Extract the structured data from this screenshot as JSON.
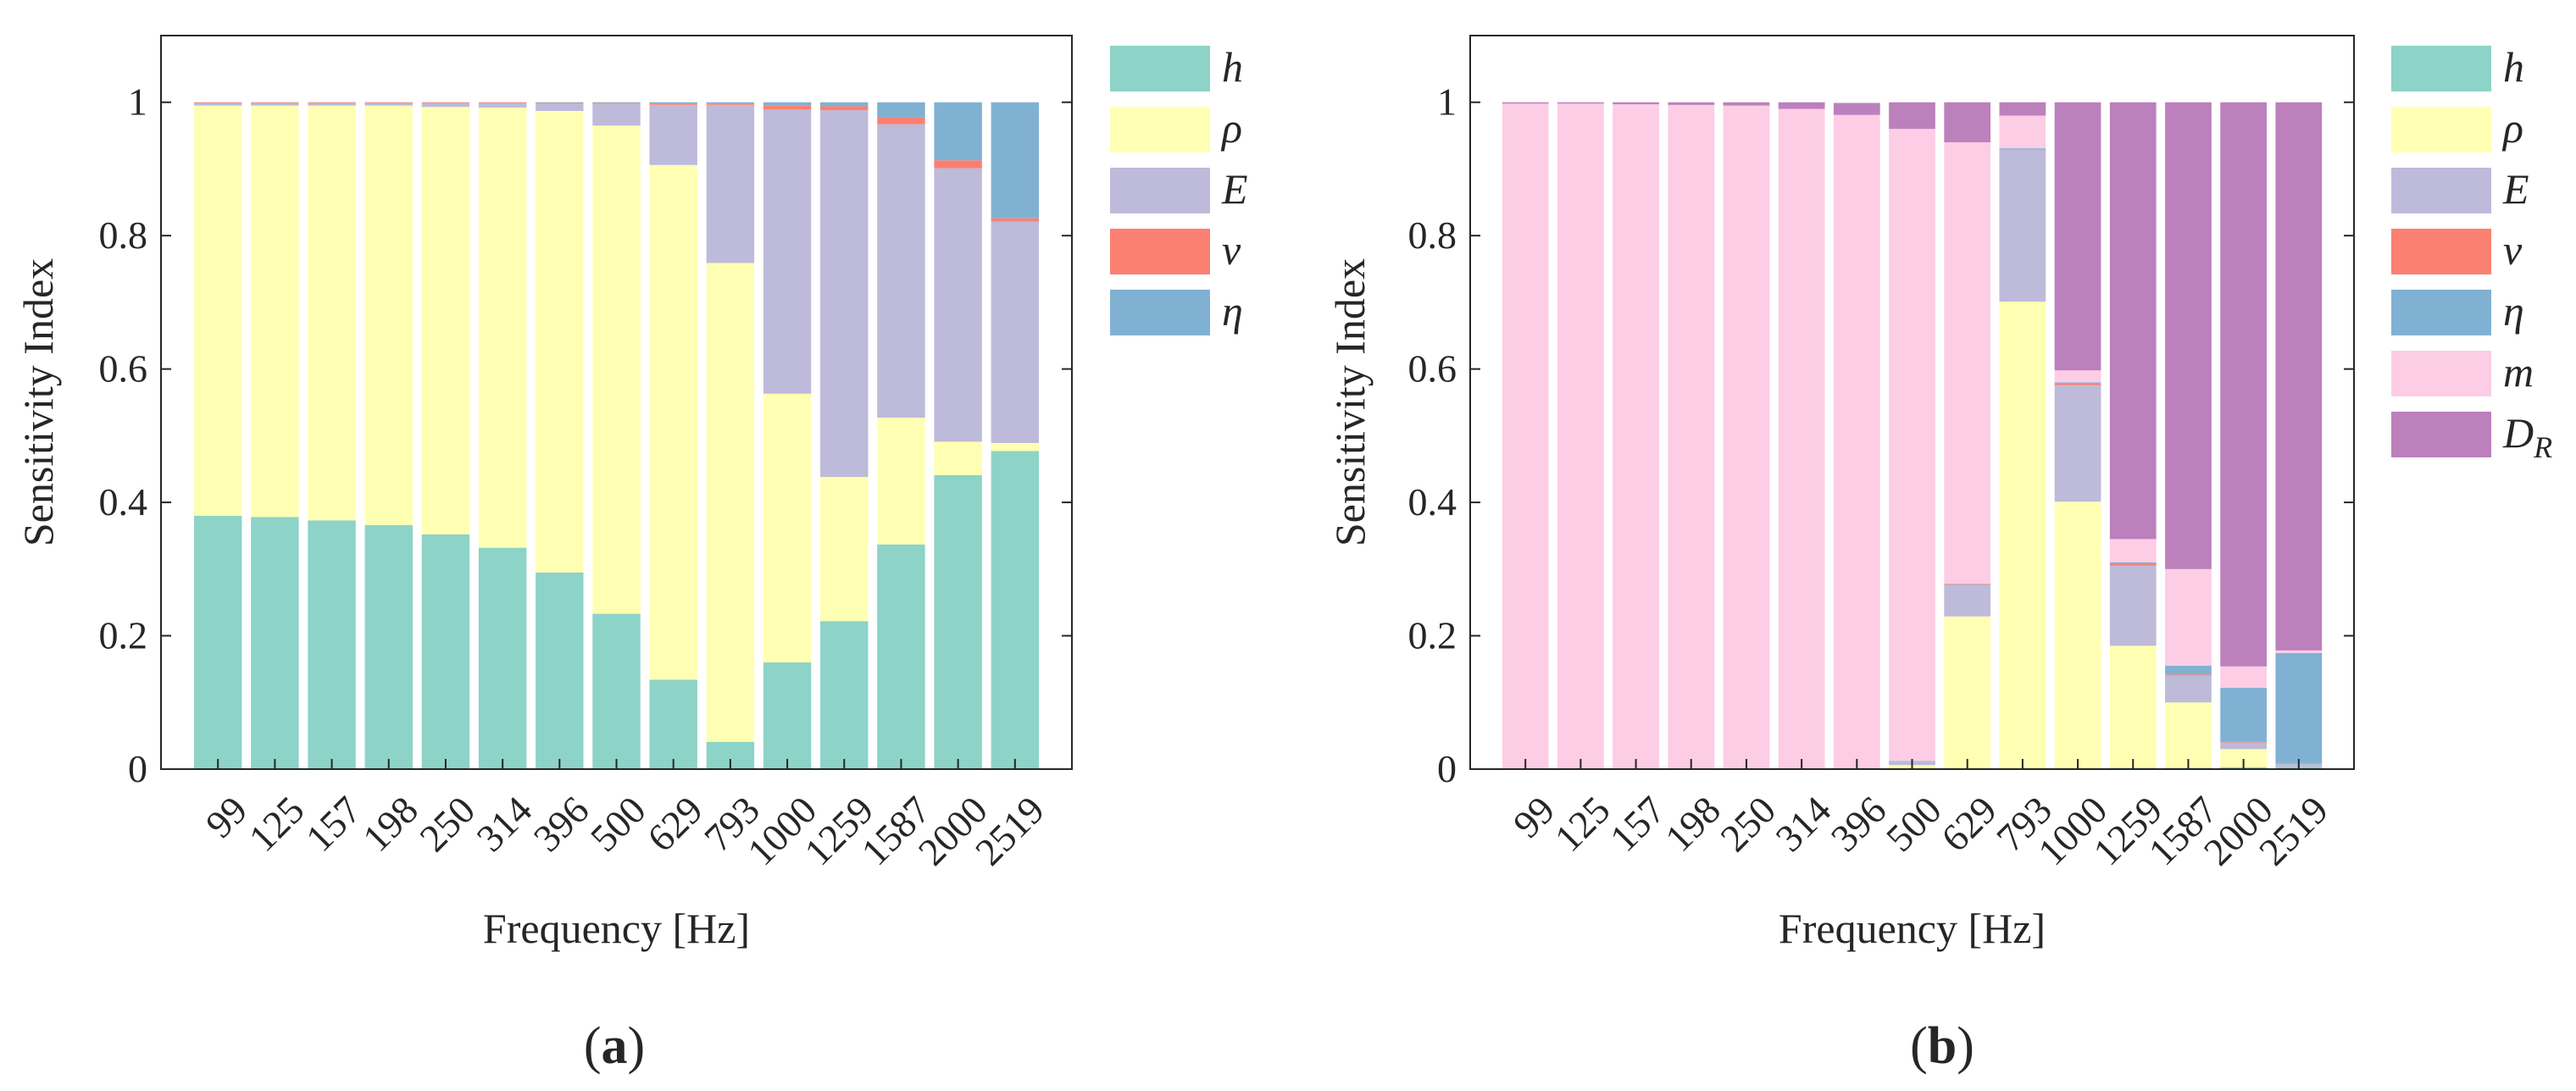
{
  "figure": {
    "panel_labels": [
      {
        "open": "(",
        "letter": "a",
        "close": ")"
      },
      {
        "open": "(",
        "letter": "b",
        "close": ")"
      }
    ]
  },
  "chart_data": [
    {
      "type": "bar",
      "stacked": true,
      "panel": "a",
      "xlabel": "Frequency [Hz]",
      "ylabel": "Sensitivity Index",
      "ylim": [
        0,
        1.1
      ],
      "yticks": [
        0,
        0.2,
        0.4,
        0.6,
        0.8,
        1
      ],
      "ytick_labels": [
        "0",
        "0.2",
        "0.4",
        "0.6",
        "0.8",
        "1"
      ],
      "categories": [
        "99",
        "125",
        "157",
        "198",
        "250",
        "314",
        "396",
        "500",
        "629",
        "793",
        "1000",
        "1259",
        "1587",
        "2000",
        "2519"
      ],
      "legend_position": "outside-top-right",
      "series": [
        {
          "name": "h",
          "color": "#8dd3c7",
          "values": [
            0.38,
            0.378,
            0.373,
            0.366,
            0.352,
            0.332,
            0.295,
            0.233,
            0.134,
            0.041,
            0.16,
            0.222,
            0.337,
            0.441,
            0.477
          ]
        },
        {
          "name": "ρ",
          "color": "#ffffb3",
          "values": [
            0.615,
            0.617,
            0.622,
            0.629,
            0.641,
            0.66,
            0.692,
            0.732,
            0.772,
            0.718,
            0.403,
            0.216,
            0.19,
            0.05,
            0.012
          ]
        },
        {
          "name": "E",
          "color": "#bebada",
          "values": [
            0.004,
            0.004,
            0.004,
            0.004,
            0.006,
            0.007,
            0.011,
            0.033,
            0.09,
            0.237,
            0.426,
            0.55,
            0.44,
            0.41,
            0.332
          ]
        },
        {
          "name": "ν",
          "color": "#fb8072",
          "values": [
            0.001,
            0.001,
            0.001,
            0.001,
            0.001,
            0.001,
            0.001,
            0.001,
            0.002,
            0.002,
            0.006,
            0.006,
            0.01,
            0.012,
            0.005
          ]
        },
        {
          "name": "η",
          "color": "#80b1d3",
          "values": [
            0.0,
            0.0,
            0.0,
            0.0,
            0.0,
            0.0,
            0.001,
            0.001,
            0.002,
            0.002,
            0.005,
            0.006,
            0.023,
            0.087,
            0.174
          ]
        }
      ]
    },
    {
      "type": "bar",
      "stacked": true,
      "panel": "b",
      "xlabel": "Frequency [Hz]",
      "ylabel": "Sensitivity Index",
      "ylim": [
        0,
        1.1
      ],
      "yticks": [
        0,
        0.2,
        0.4,
        0.6,
        0.8,
        1
      ],
      "ytick_labels": [
        "0",
        "0.2",
        "0.4",
        "0.6",
        "0.8",
        "1"
      ],
      "categories": [
        "99",
        "125",
        "157",
        "198",
        "250",
        "314",
        "396",
        "500",
        "629",
        "793",
        "1000",
        "1259",
        "1587",
        "2000",
        "2519"
      ],
      "legend_position": "outside-top-right",
      "series": [
        {
          "name": "h",
          "color": "#8dd3c7",
          "values": [
            0,
            0,
            0,
            0,
            0,
            0,
            0,
            0.001,
            0.001,
            0.001,
            0.001,
            0.002,
            0.002,
            0.003,
            0.004
          ]
        },
        {
          "name": "ρ",
          "color": "#ffffb3",
          "values": [
            0.0,
            0.0,
            0.0,
            0.0,
            0.0,
            0.0,
            0.001,
            0.005,
            0.228,
            0.7,
            0.4,
            0.183,
            0.098,
            0.027,
            0.0
          ]
        },
        {
          "name": "E",
          "color": "#bebada",
          "values": [
            0.0,
            0.0,
            0.0,
            0.0,
            0.0,
            0.0,
            0.001,
            0.005,
            0.047,
            0.228,
            0.175,
            0.12,
            0.04,
            0.01,
            0.004
          ]
        },
        {
          "name": "ν",
          "color": "#fb8072",
          "values": [
            0,
            0,
            0,
            0,
            0,
            0,
            0,
            0,
            0.001,
            0.001,
            0.003,
            0.003,
            0.002,
            0.001,
            0.001
          ]
        },
        {
          "name": "η",
          "color": "#80b1d3",
          "values": [
            0,
            0,
            0,
            0,
            0,
            0,
            0,
            0.001,
            0.001,
            0.001,
            0.001,
            0.002,
            0.013,
            0.081,
            0.165
          ]
        },
        {
          "name": "m",
          "color": "#fccde5",
          "values": [
            0.998,
            0.998,
            0.997,
            0.996,
            0.995,
            0.99,
            0.979,
            0.948,
            0.662,
            0.049,
            0.018,
            0.035,
            0.145,
            0.032,
            0.004
          ]
        },
        {
          "name": "D",
          "subscript": "R",
          "color": "#bc80bd",
          "values": [
            0.002,
            0.002,
            0.003,
            0.004,
            0.005,
            0.01,
            0.018,
            0.04,
            0.06,
            0.02,
            0.402,
            0.655,
            0.7,
            0.846,
            0.822
          ]
        }
      ]
    }
  ]
}
